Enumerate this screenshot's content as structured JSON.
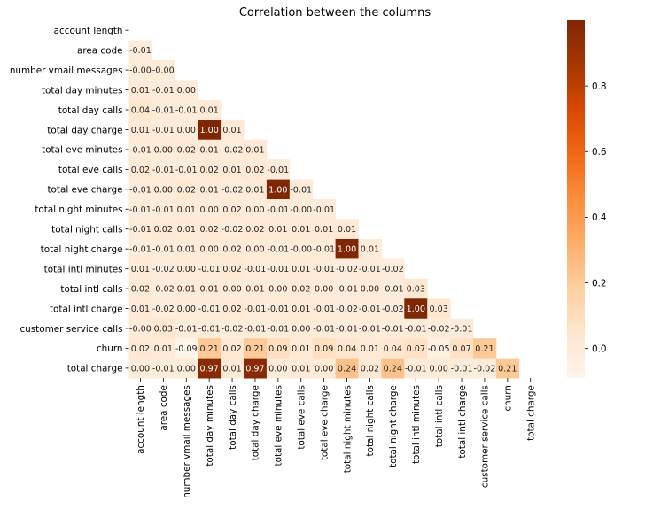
{
  "chart_data": {
    "type": "heatmap",
    "title": "Correlation between the columns",
    "labels": [
      "account length",
      "area code",
      "number vmail messages",
      "total day minutes",
      "total day calls",
      "total day charge",
      "total eve minutes",
      "total eve calls",
      "total eve charge",
      "total night minutes",
      "total night calls",
      "total night charge",
      "total intl minutes",
      "total intl calls",
      "total intl charge",
      "customer service calls",
      "churn",
      "total charge"
    ],
    "mask": "upper-triangle-including-diagonal",
    "lower_triangle_values": [
      [],
      [
        -0.01
      ],
      [
        -0.0,
        -0.0
      ],
      [
        0.01,
        -0.01,
        0.0
      ],
      [
        0.04,
        -0.01,
        -0.01,
        0.01
      ],
      [
        0.01,
        -0.01,
        0.0,
        1.0,
        0.01
      ],
      [
        -0.01,
        0.0,
        0.02,
        0.01,
        -0.02,
        0.01
      ],
      [
        0.02,
        -0.01,
        -0.01,
        0.02,
        0.01,
        0.02,
        -0.01
      ],
      [
        -0.01,
        0.0,
        0.02,
        0.01,
        -0.02,
        0.01,
        1.0,
        -0.01
      ],
      [
        -0.01,
        -0.01,
        0.01,
        0.0,
        0.02,
        0.0,
        -0.01,
        -0.0,
        -0.01
      ],
      [
        -0.01,
        0.02,
        0.01,
        0.02,
        -0.02,
        0.02,
        0.01,
        0.01,
        0.01,
        0.01
      ],
      [
        -0.01,
        -0.01,
        0.01,
        0.0,
        0.02,
        0.0,
        -0.01,
        -0.0,
        -0.01,
        1.0,
        0.01
      ],
      [
        0.01,
        -0.02,
        0.0,
        -0.01,
        0.02,
        -0.01,
        -0.01,
        0.01,
        -0.01,
        -0.02,
        -0.01,
        -0.02
      ],
      [
        0.02,
        -0.02,
        0.01,
        0.01,
        0.0,
        0.01,
        0.0,
        0.02,
        0.0,
        -0.01,
        0.0,
        -0.01,
        0.03
      ],
      [
        0.01,
        -0.02,
        0.0,
        -0.01,
        0.02,
        -0.01,
        -0.01,
        0.01,
        -0.01,
        -0.02,
        -0.01,
        -0.02,
        1.0,
        0.03
      ],
      [
        -0.0,
        0.03,
        -0.01,
        -0.01,
        -0.02,
        -0.01,
        -0.01,
        0.0,
        -0.01,
        -0.01,
        -0.01,
        -0.01,
        -0.01,
        -0.02,
        -0.01
      ],
      [
        0.02,
        0.01,
        -0.09,
        0.21,
        0.02,
        0.21,
        0.09,
        0.01,
        0.09,
        0.04,
        0.01,
        0.04,
        0.07,
        -0.05,
        0.07,
        0.21
      ],
      [
        0.0,
        -0.01,
        0.0,
        0.97,
        0.01,
        0.97,
        0.0,
        0.01,
        0.0,
        0.24,
        0.02,
        0.24,
        -0.01,
        0.0,
        -0.01,
        -0.02,
        0.21
      ]
    ],
    "value_format": "2 decimals",
    "colormap": "Oranges",
    "colorbar": {
      "vmin": -0.09,
      "vmax": 1.0,
      "ticks": [
        "0.0",
        "0.2",
        "0.4",
        "0.6",
        "0.8"
      ],
      "tick_values": [
        0.0,
        0.2,
        0.4,
        0.6,
        0.8
      ]
    }
  }
}
